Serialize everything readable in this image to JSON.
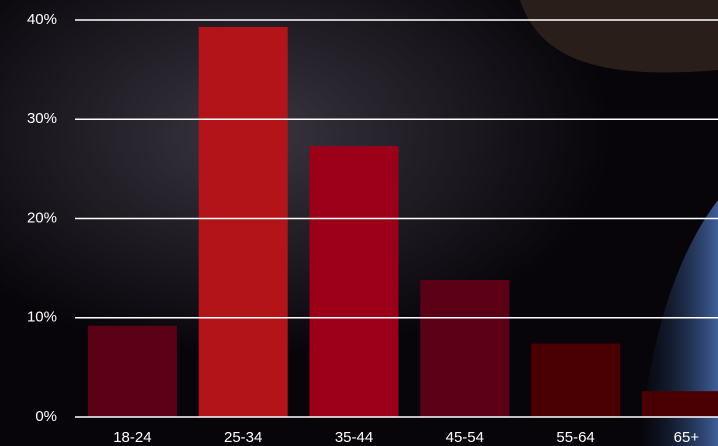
{
  "chart_data": {
    "type": "bar",
    "categories": [
      "18-24",
      "25-34",
      "35-44",
      "45-54",
      "55-64",
      "65+"
    ],
    "values": [
      9.2,
      39.3,
      27.3,
      13.8,
      7.4,
      2.6
    ],
    "colors": [
      "#5c0016",
      "#b3141a",
      "#9c0019",
      "#5c0016",
      "#4a0002",
      "#4a0002"
    ],
    "ylim": [
      0,
      40
    ],
    "yticks": [
      {
        "value": 0,
        "label": "0%"
      },
      {
        "value": 10,
        "label": "10%"
      },
      {
        "value": 20,
        "label": "20%"
      },
      {
        "value": 30,
        "label": "30%"
      },
      {
        "value": 40,
        "label": "40%"
      }
    ],
    "grid": true
  }
}
